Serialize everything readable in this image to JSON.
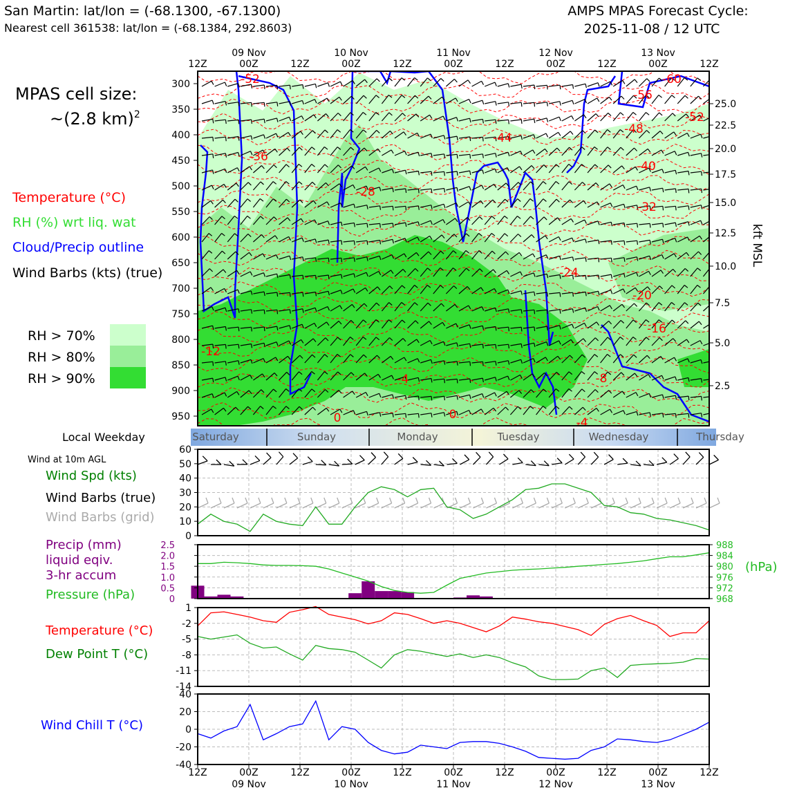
{
  "header": {
    "left_line1": "San Martin: lat/lon = (-68.1300, -67.1300)",
    "left_line2": "Nearest cell 361538: lat/lon = (-68.1384, 292.8603)",
    "right_line1": "AMPS MPAS Forecast Cycle:",
    "right_line2": "2025-11-08 / 12 UTC"
  },
  "cell_size": {
    "line1": "MPAS cell size:",
    "line2": "~(2.8 km)",
    "sup": "2"
  },
  "legend_top": [
    {
      "text": "Temperature (°C)",
      "color": "#ff0000"
    },
    {
      "text": "RH (%) wrt liq. wat",
      "color": "#33dd33"
    },
    {
      "text": "Cloud/Precip outline",
      "color": "#0000ff"
    },
    {
      "text": "Wind Barbs (kts) (true)",
      "color": "#000000"
    }
  ],
  "rh_legend": [
    {
      "text": "RH > 70%",
      "color": "#ccffcc"
    },
    {
      "text": "RH > 80%",
      "color": "#99ee99"
    },
    {
      "text": "RH > 90%",
      "color": "#33dd33"
    }
  ],
  "time_axis": {
    "top_labels": [
      "12Z",
      "00Z",
      "12Z",
      "00Z",
      "12Z",
      "00Z",
      "12Z",
      "00Z",
      "12Z",
      "00Z",
      "12Z"
    ],
    "date_labels": [
      "09 Nov",
      "10 Nov",
      "11 Nov",
      "12 Nov",
      "13 Nov"
    ]
  },
  "weekday": {
    "title": "Local Weekday",
    "days": [
      "Saturday",
      "Sunday",
      "Monday",
      "Tuesday",
      "Wednesday",
      "Thursday"
    ]
  },
  "legend_bottom": {
    "wind_title": "Wind at 10m AGL",
    "wind_spd": {
      "text": "Wind Spd (kts)",
      "color": "#008000"
    },
    "wind_true": {
      "text": "Wind Barbs (true)",
      "color": "#000000"
    },
    "wind_grid": {
      "text": "Wind Barbs (grid)",
      "color": "#aaaaaa"
    },
    "precip_1": {
      "text": "Precip (mm)",
      "color": "#800080"
    },
    "precip_2": {
      "text": "liquid eqiv.",
      "color": "#800080"
    },
    "precip_3": {
      "text": "3-hr accum",
      "color": "#800080"
    },
    "pressure": {
      "text": "Pressure (hPa)",
      "color": "#22bb22"
    },
    "temp": {
      "text": "Temperature (°C)",
      "color": "#ff0000"
    },
    "dew": {
      "text": "Dew Point T (°C)",
      "color": "#008000"
    },
    "chill": {
      "text": "Wind Chill T (°C)",
      "color": "#0000ff"
    }
  },
  "chart_data": [
    {
      "type": "heatmap",
      "title": "",
      "y_label_left": "",
      "y_label_right": "kft MSL",
      "y_ticks_hpa": [
        300,
        350,
        400,
        450,
        500,
        550,
        600,
        650,
        700,
        750,
        800,
        850,
        900,
        950
      ],
      "y_ticks_kft": [
        "25.0",
        "22.5",
        "20.0",
        "17.5",
        "15.0",
        "12.5",
        "10.0",
        "7.5",
        "5.0",
        "2.5"
      ],
      "temperature_contour_labels": [
        "-52",
        "-60",
        "-56",
        "-52",
        "-48",
        "-44",
        "-36",
        "-40",
        "-28",
        "-32",
        "-24",
        "-20",
        "-16",
        "-12",
        "-8",
        "-4",
        "0",
        "0",
        "-4"
      ]
    },
    {
      "type": "line",
      "name": "wind",
      "x_labels": [
        "12Z",
        "00Z",
        "12Z",
        "00Z",
        "12Z",
        "00Z",
        "12Z",
        "00Z",
        "12Z",
        "00Z",
        "12Z"
      ],
      "y_ticks": [
        0,
        10,
        20,
        30,
        40,
        50,
        60
      ],
      "ylim": [
        0,
        60
      ],
      "series": [
        {
          "name": "Wind Spd (kts)",
          "color": "#22aa22",
          "values": [
            8,
            15,
            10,
            8,
            3,
            15,
            10,
            8,
            7,
            20,
            8,
            8,
            20,
            30,
            34,
            32,
            27,
            32,
            33,
            20,
            18,
            12,
            15,
            20,
            25,
            32,
            33,
            36,
            36,
            33,
            30,
            21,
            20,
            16,
            15,
            12,
            11,
            9,
            7,
            4
          ]
        }
      ]
    },
    {
      "type": "bar",
      "name": "precip_pressure",
      "y_ticks_left": [
        "2.5",
        "2.0",
        "1.5",
        "1.0",
        "0.5",
        "0"
      ],
      "y_ticks_right": [
        "988",
        "984",
        "980",
        "976",
        "972",
        "968"
      ],
      "y_label_right": "(hPa)",
      "ylim_precip": [
        0,
        2.5
      ],
      "ylim_pressure": [
        968,
        988
      ],
      "precip_values": [
        0.6,
        0.1,
        0.18,
        0.1,
        0,
        0,
        0,
        0,
        0,
        0,
        0,
        0,
        0.25,
        0.8,
        0.35,
        0.35,
        0.3,
        0,
        0,
        0,
        0.05,
        0.15,
        0.1,
        0,
        0,
        0,
        0,
        0,
        0,
        0,
        0,
        0,
        0,
        0,
        0,
        0,
        0,
        0,
        0,
        0
      ],
      "pressure_values": [
        981,
        981,
        981.5,
        981.3,
        981,
        980.5,
        980.3,
        980.3,
        980.2,
        980,
        979,
        977.5,
        976,
        974.5,
        972.5,
        971,
        970.3,
        970,
        970.3,
        973,
        975.5,
        976.5,
        977.5,
        978,
        978.5,
        978.8,
        979,
        979.3,
        979.6,
        980,
        980.3,
        980.7,
        981,
        981.5,
        982,
        982.8,
        983.5,
        983.5,
        984.2,
        985
      ]
    },
    {
      "type": "line",
      "name": "temperature_dewpoint",
      "y_ticks": [
        1,
        -2,
        -5,
        -8,
        -11,
        -14
      ],
      "ylim": [
        -14,
        1
      ],
      "series": [
        {
          "name": "Temperature (°C)",
          "color": "#ff0000",
          "values": [
            -2.5,
            0,
            0.2,
            -0.3,
            -0.8,
            -1.5,
            -1.8,
            0.1,
            0.6,
            1.2,
            -0.3,
            -0.8,
            -1.3,
            -2.1,
            -1.5,
            0,
            -0.3,
            -1.1,
            -2,
            -1.5,
            -2,
            -2.8,
            -3.6,
            -2.5,
            -0.8,
            -1.2,
            -1.7,
            -2,
            -2.6,
            -3.2,
            -4.3,
            -2.2,
            -1.1,
            -0.5,
            -1.5,
            -2.4,
            -4.5,
            -3.8,
            -3.8,
            -1.5
          ]
        },
        {
          "name": "Dew Point T (°C)",
          "color": "#22aa22",
          "values": [
            -4.5,
            -5,
            -4.6,
            -4.2,
            -5.8,
            -6.7,
            -6.5,
            -7.8,
            -9,
            -6.2,
            -6.8,
            -7,
            -7.5,
            -9,
            -10.5,
            -8,
            -7,
            -7.3,
            -7.8,
            -8.3,
            -7.8,
            -8.5,
            -8,
            -8.5,
            -9.5,
            -10.3,
            -12,
            -12.7,
            -12.7,
            -12.6,
            -11,
            -10.5,
            -12.3,
            -10,
            -9.8,
            -9.7,
            -9.6,
            -9.4,
            -8.7,
            -8.8
          ]
        }
      ]
    },
    {
      "type": "line",
      "name": "wind_chill",
      "y_ticks": [
        40,
        20,
        0,
        -20,
        -40
      ],
      "ylim": [
        -40,
        40
      ],
      "series": [
        {
          "name": "Wind Chill T (°C)",
          "color": "#0000ff",
          "values": [
            -5,
            -10,
            -2,
            3,
            28,
            -12,
            -5,
            3,
            6,
            32,
            -12,
            3,
            0,
            -15,
            -24,
            -28,
            -26,
            -18,
            -20,
            -22,
            -15,
            -14,
            -14,
            -16,
            -20,
            -25,
            -32,
            -33,
            -34,
            -33,
            -24,
            -20,
            -11,
            -12,
            -14,
            -15,
            -12,
            -6,
            0,
            8
          ]
        }
      ]
    }
  ]
}
